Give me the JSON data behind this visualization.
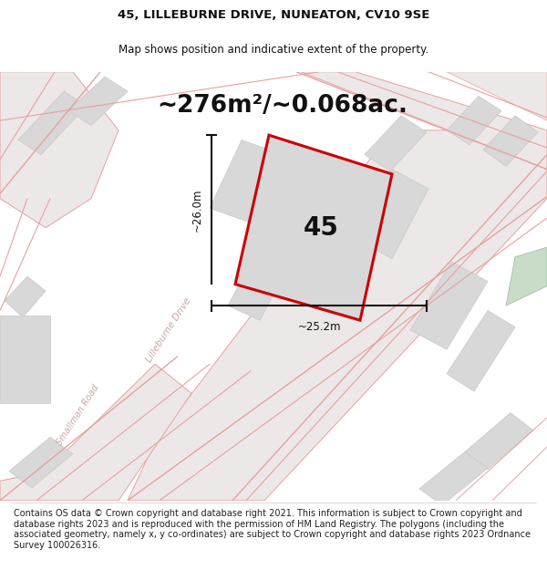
{
  "title_line1": "45, LILLEBURNE DRIVE, NUNEATON, CV10 9SE",
  "title_line2": "Map shows position and indicative extent of the property.",
  "area_text": "~276m²/~0.068ac.",
  "house_number": "45",
  "dim_vertical": "~26.0m",
  "dim_horizontal": "~25.2m",
  "footer_text": "Contains OS data © Crown copyright and database right 2021. This information is subject to Crown copyright and database rights 2023 and is reproduced with the permission of HM Land Registry. The polygons (including the associated geometry, namely x, y co-ordinates) are subject to Crown copyright and database rights 2023 Ordnance Survey 100026316.",
  "bg_color": "#ffffff",
  "map_bg": "#f5f5f5",
  "road_fill": "#ede8e8",
  "road_line": "#e8a0a0",
  "road_line2": "#d08080",
  "building_color": "#d8d8d8",
  "building_edge": "#c8c8c8",
  "property_fill": "#d8d8d8",
  "property_edge": "#cc0000",
  "dim_color": "#111111",
  "green_patch": "#c8dcc8",
  "title_fontsize": 9.5,
  "subtitle_fontsize": 8.5,
  "area_fontsize": 19,
  "footer_fontsize": 7.0,
  "road_label_color": "#c8a8a8"
}
